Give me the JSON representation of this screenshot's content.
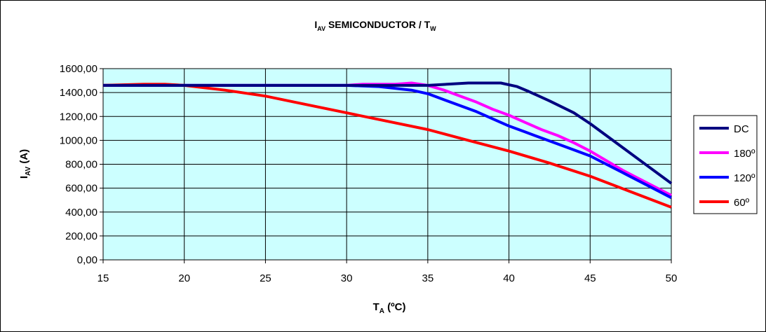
{
  "chart_data": {
    "type": "line",
    "title": {
      "main": "I",
      "sub": "AV",
      "rest": " SEMICONDUCTOR / T",
      "sub2": "W"
    },
    "xlabel": {
      "main": "T",
      "sub": "A",
      "rest": " (ºC)"
    },
    "ylabel": {
      "main": "I",
      "sub": "AV",
      "rest": " (A)"
    },
    "xlim": [
      15,
      50
    ],
    "ylim": [
      0,
      1600
    ],
    "x_ticks": [
      15,
      20,
      25,
      30,
      35,
      40,
      45,
      50
    ],
    "y_ticks": [
      {
        "v": 0,
        "label": "0,00"
      },
      {
        "v": 200,
        "label": "200,00"
      },
      {
        "v": 400,
        "label": "400,00"
      },
      {
        "v": 600,
        "label": "600,00"
      },
      {
        "v": 800,
        "label": "800,00"
      },
      {
        "v": 1000,
        "label": "1000,00"
      },
      {
        "v": 1200,
        "label": "1200,00"
      },
      {
        "v": 1400,
        "label": "1400,00"
      },
      {
        "v": 1600,
        "label": "1600,00"
      }
    ],
    "grid": {
      "horizontal": true,
      "vertical": true
    },
    "plot_background": "#ccffff",
    "legend_position": "right",
    "series": [
      {
        "name": "DC",
        "color": "#000080",
        "points": [
          [
            15,
            1460
          ],
          [
            20,
            1460
          ],
          [
            25,
            1460
          ],
          [
            30,
            1460
          ],
          [
            35,
            1460
          ],
          [
            37.5,
            1480
          ],
          [
            39.5,
            1480
          ],
          [
            40.5,
            1450
          ],
          [
            41.2,
            1410
          ],
          [
            42.5,
            1330
          ],
          [
            44,
            1230
          ],
          [
            45,
            1140
          ],
          [
            46,
            1040
          ],
          [
            47,
            940
          ],
          [
            48,
            840
          ],
          [
            50,
            640
          ]
        ]
      },
      {
        "name": "180º",
        "color": "#ff00ff",
        "points": [
          [
            15,
            1460
          ],
          [
            20,
            1460
          ],
          [
            25,
            1460
          ],
          [
            30,
            1460
          ],
          [
            31,
            1470
          ],
          [
            33,
            1470
          ],
          [
            34,
            1480
          ],
          [
            35,
            1460
          ],
          [
            36,
            1420
          ],
          [
            37,
            1370
          ],
          [
            38,
            1320
          ],
          [
            39,
            1260
          ],
          [
            40,
            1210
          ],
          [
            41,
            1150
          ],
          [
            42,
            1090
          ],
          [
            43,
            1040
          ],
          [
            44,
            980
          ],
          [
            45,
            910
          ],
          [
            46,
            830
          ],
          [
            47,
            750
          ],
          [
            48,
            680
          ],
          [
            50,
            540
          ]
        ]
      },
      {
        "name": "120º",
        "color": "#0000ff",
        "points": [
          [
            15,
            1460
          ],
          [
            20,
            1460
          ],
          [
            25,
            1460
          ],
          [
            30,
            1460
          ],
          [
            32,
            1450
          ],
          [
            34,
            1420
          ],
          [
            35,
            1390
          ],
          [
            36,
            1340
          ],
          [
            37,
            1290
          ],
          [
            38,
            1240
          ],
          [
            39,
            1180
          ],
          [
            40,
            1120
          ],
          [
            41,
            1070
          ],
          [
            42,
            1020
          ],
          [
            43,
            970
          ],
          [
            44,
            920
          ],
          [
            45,
            870
          ],
          [
            46,
            800
          ],
          [
            47,
            730
          ],
          [
            48,
            660
          ],
          [
            49,
            590
          ],
          [
            50,
            520
          ]
        ]
      },
      {
        "name": "60º",
        "color": "#ff0000",
        "points": [
          [
            15,
            1460
          ],
          [
            17.5,
            1470
          ],
          [
            18.8,
            1470
          ],
          [
            20,
            1460
          ],
          [
            22.5,
            1420
          ],
          [
            25,
            1370
          ],
          [
            27.5,
            1300
          ],
          [
            30,
            1230
          ],
          [
            32.5,
            1160
          ],
          [
            35,
            1090
          ],
          [
            37.5,
            1000
          ],
          [
            40,
            910
          ],
          [
            42.5,
            810
          ],
          [
            45,
            700
          ],
          [
            47.5,
            570
          ],
          [
            50,
            440
          ]
        ]
      }
    ]
  }
}
